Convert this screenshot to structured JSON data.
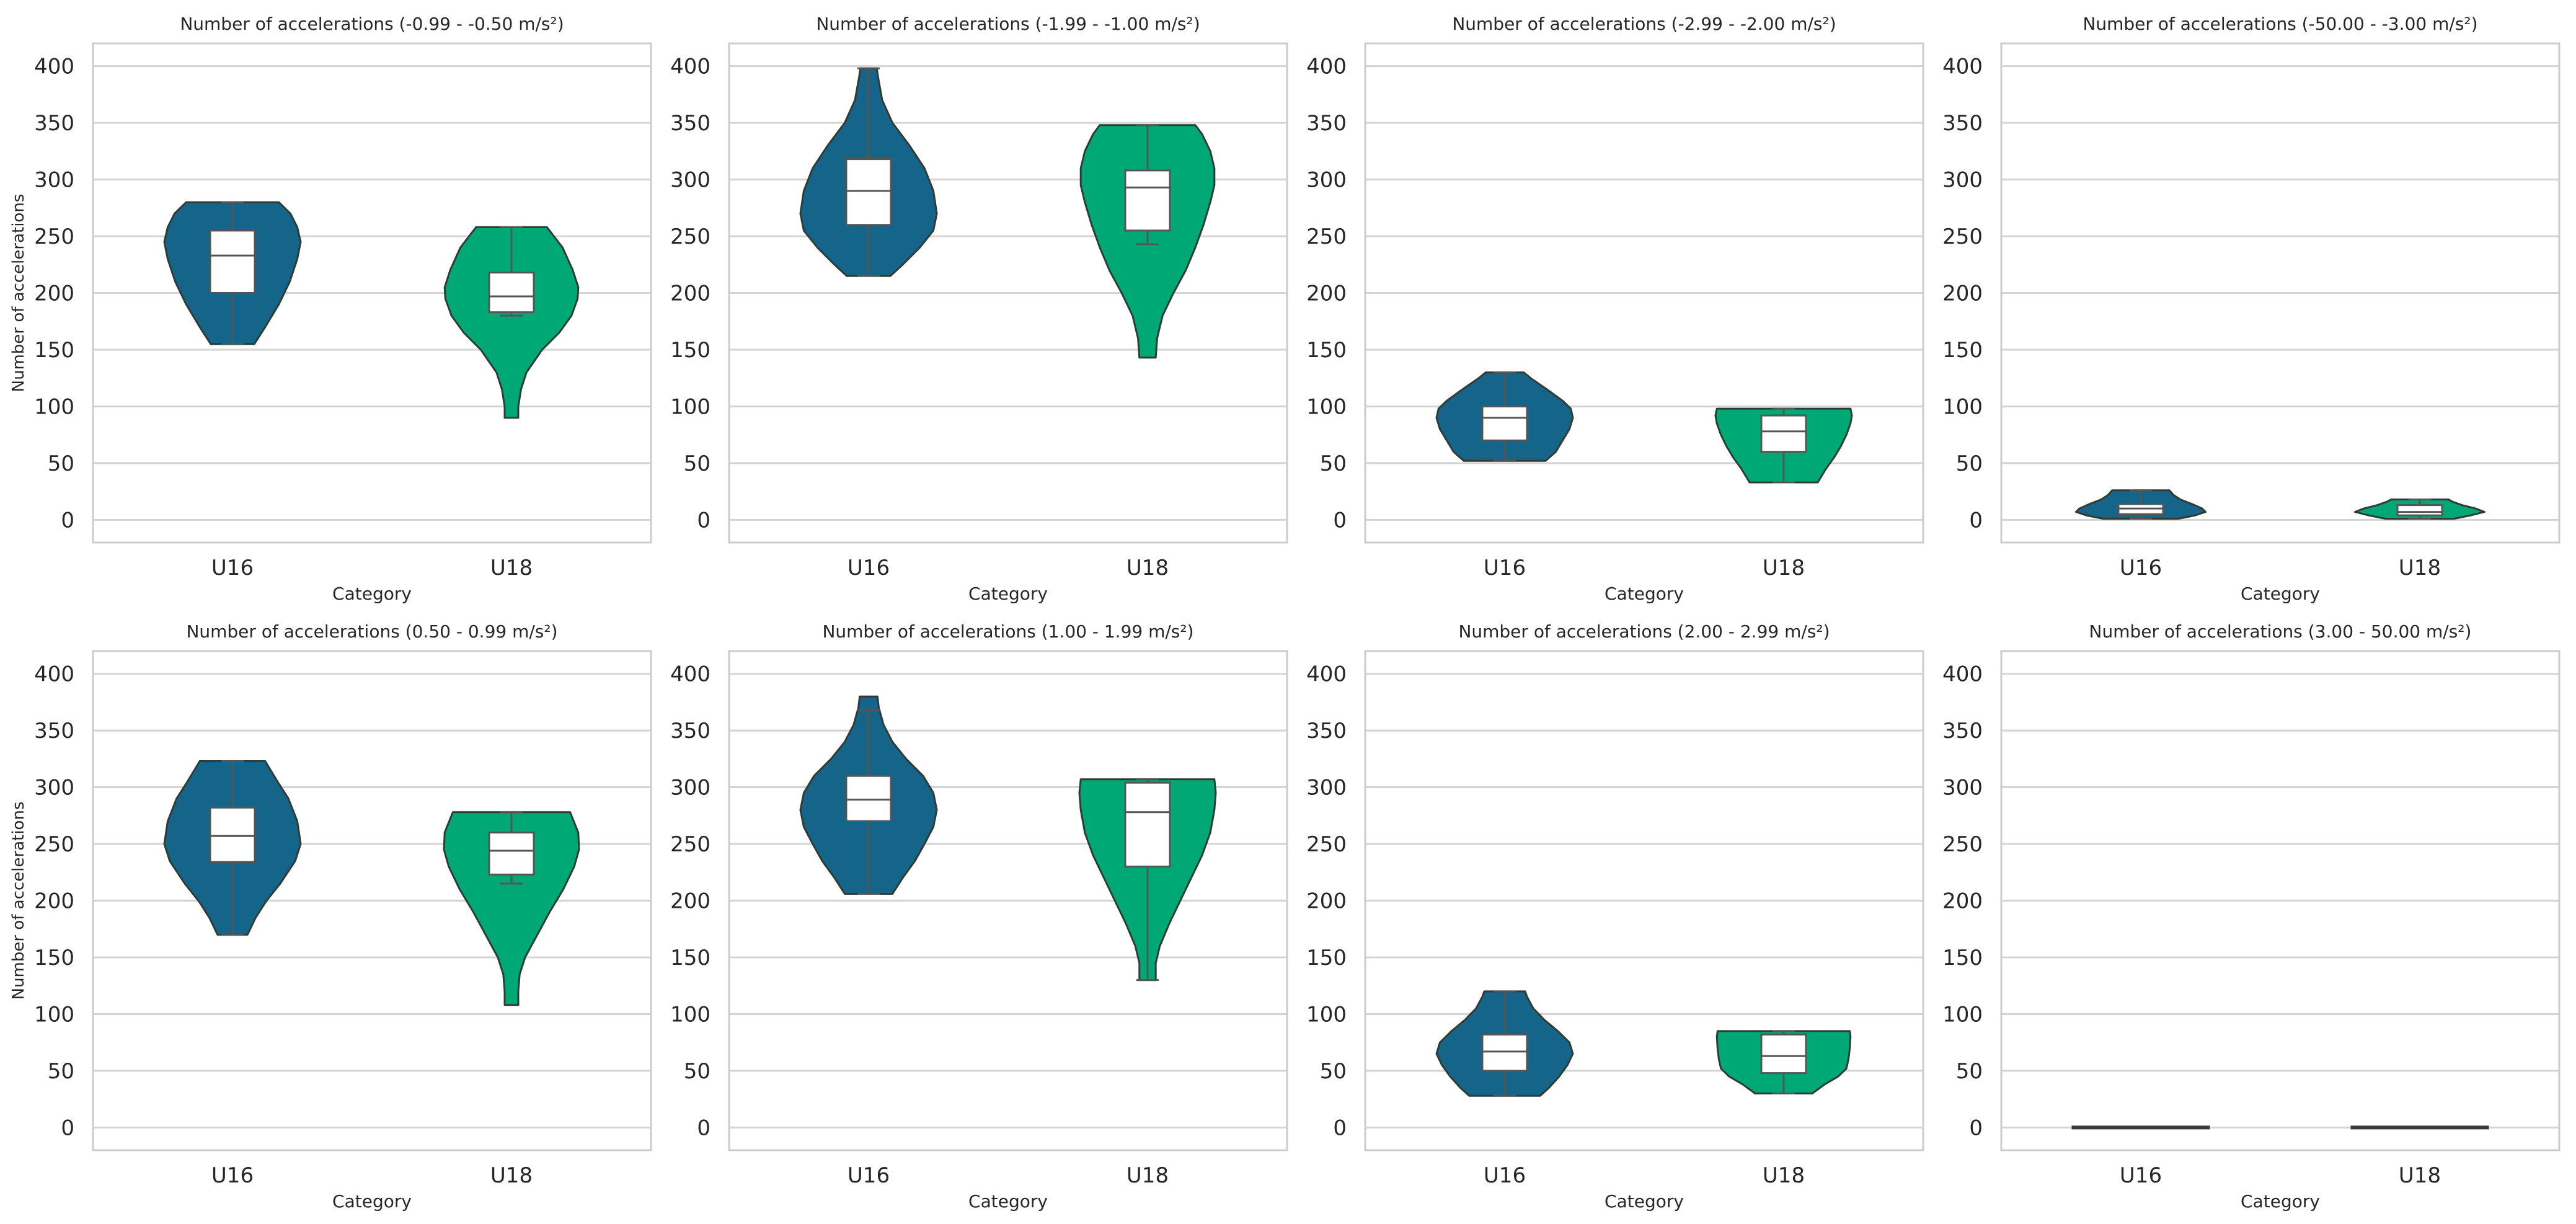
{
  "chart_data": {
    "type": "violin",
    "ylabel": "Number of accelerations",
    "xlabel": "Category",
    "categories": [
      "U16",
      "U18"
    ],
    "ylim": [
      -20,
      420
    ],
    "yticks": [
      0,
      50,
      100,
      150,
      200,
      250,
      300,
      350,
      400
    ],
    "grid": "horizontal",
    "colors": {
      "U16": "#15658a",
      "U18": "#00a875"
    },
    "panels": [
      {
        "title": "Number of accelerations (-0.99 - -0.50 m/s²)",
        "show_ylabel": true,
        "violins": [
          {
            "category": "U16",
            "min": 155,
            "q1": 200,
            "median": 233,
            "q3": 255,
            "max": 280,
            "whisker_low": 155,
            "whisker_high": 280,
            "profile": [
              [
                155,
                0.32
              ],
              [
                170,
                0.48
              ],
              [
                190,
                0.68
              ],
              [
                210,
                0.84
              ],
              [
                230,
                0.95
              ],
              [
                245,
                1.0
              ],
              [
                258,
                0.95
              ],
              [
                270,
                0.85
              ],
              [
                280,
                0.68
              ]
            ]
          },
          {
            "category": "U18",
            "min": 90,
            "q1": 183,
            "median": 197,
            "q3": 218,
            "max": 258,
            "whisker_low": 180,
            "whisker_high": 258,
            "profile": [
              [
                90,
                0.1
              ],
              [
                100,
                0.1
              ],
              [
                115,
                0.14
              ],
              [
                130,
                0.22
              ],
              [
                150,
                0.45
              ],
              [
                165,
                0.7
              ],
              [
                180,
                0.88
              ],
              [
                195,
                0.97
              ],
              [
                205,
                0.98
              ],
              [
                220,
                0.9
              ],
              [
                240,
                0.75
              ],
              [
                258,
                0.52
              ]
            ]
          }
        ]
      },
      {
        "title": "Number of accelerations (-1.99 - -1.00 m/s²)",
        "show_ylabel": false,
        "violins": [
          {
            "category": "U16",
            "min": 215,
            "q1": 260,
            "median": 290,
            "q3": 318,
            "max": 398,
            "whisker_low": 215,
            "whisker_high": 398,
            "profile": [
              [
                215,
                0.32
              ],
              [
                225,
                0.5
              ],
              [
                240,
                0.75
              ],
              [
                255,
                0.95
              ],
              [
                270,
                1.0
              ],
              [
                290,
                0.95
              ],
              [
                310,
                0.82
              ],
              [
                330,
                0.6
              ],
              [
                350,
                0.35
              ],
              [
                370,
                0.2
              ],
              [
                390,
                0.14
              ],
              [
                398,
                0.12
              ]
            ]
          },
          {
            "category": "U18",
            "min": 143,
            "q1": 255,
            "median": 293,
            "q3": 308,
            "max": 348,
            "whisker_low": 243,
            "whisker_high": 348,
            "profile": [
              [
                143,
                0.12
              ],
              [
                160,
                0.14
              ],
              [
                180,
                0.22
              ],
              [
                200,
                0.38
              ],
              [
                220,
                0.56
              ],
              [
                240,
                0.7
              ],
              [
                260,
                0.82
              ],
              [
                280,
                0.92
              ],
              [
                295,
                0.98
              ],
              [
                310,
                0.98
              ],
              [
                325,
                0.92
              ],
              [
                340,
                0.8
              ],
              [
                348,
                0.7
              ]
            ]
          }
        ]
      },
      {
        "title": "Number of accelerations (-2.99 - -2.00 m/s²)",
        "show_ylabel": false,
        "violins": [
          {
            "category": "U16",
            "min": 52,
            "q1": 70,
            "median": 90,
            "q3": 100,
            "max": 130,
            "whisker_low": 52,
            "whisker_high": 130,
            "profile": [
              [
                52,
                0.6
              ],
              [
                60,
                0.75
              ],
              [
                70,
                0.85
              ],
              [
                80,
                0.95
              ],
              [
                90,
                1.0
              ],
              [
                98,
                0.97
              ],
              [
                105,
                0.85
              ],
              [
                115,
                0.62
              ],
              [
                125,
                0.38
              ],
              [
                130,
                0.28
              ]
            ]
          },
          {
            "category": "U18",
            "min": 33,
            "q1": 60,
            "median": 78,
            "q3": 92,
            "max": 98,
            "whisker_low": 33,
            "whisker_high": 98,
            "profile": [
              [
                33,
                0.5
              ],
              [
                45,
                0.62
              ],
              [
                55,
                0.74
              ],
              [
                65,
                0.84
              ],
              [
                75,
                0.92
              ],
              [
                85,
                0.98
              ],
              [
                92,
                1.0
              ],
              [
                98,
                0.98
              ]
            ]
          }
        ]
      },
      {
        "title": "Number of accelerations (-50.00 - -3.00 m/s²)",
        "show_ylabel": false,
        "violins": [
          {
            "category": "U16",
            "min": 1,
            "q1": 5,
            "median": 10,
            "q3": 14,
            "max": 26,
            "whisker_low": 1,
            "whisker_high": 26,
            "profile": [
              [
                1,
                0.55
              ],
              [
                4,
                0.8
              ],
              [
                7,
                0.95
              ],
              [
                10,
                0.9
              ],
              [
                14,
                0.75
              ],
              [
                18,
                0.58
              ],
              [
                22,
                0.48
              ],
              [
                26,
                0.42
              ]
            ]
          },
          {
            "category": "U18",
            "min": 1,
            "q1": 4,
            "median": 7,
            "q3": 13,
            "max": 18,
            "whisker_low": 1,
            "whisker_high": 18,
            "profile": [
              [
                1,
                0.5
              ],
              [
                4,
                0.75
              ],
              [
                7,
                0.95
              ],
              [
                10,
                0.82
              ],
              [
                13,
                0.62
              ],
              [
                16,
                0.48
              ],
              [
                18,
                0.42
              ]
            ]
          }
        ]
      },
      {
        "title": "Number of accelerations (0.50 - 0.99 m/s²)",
        "show_ylabel": true,
        "violins": [
          {
            "category": "U16",
            "min": 170,
            "q1": 234,
            "median": 257,
            "q3": 282,
            "max": 323,
            "whisker_low": 170,
            "whisker_high": 323,
            "profile": [
              [
                170,
                0.22
              ],
              [
                185,
                0.34
              ],
              [
                200,
                0.5
              ],
              [
                215,
                0.7
              ],
              [
                235,
                0.92
              ],
              [
                250,
                1.0
              ],
              [
                270,
                0.95
              ],
              [
                290,
                0.82
              ],
              [
                305,
                0.66
              ],
              [
                315,
                0.56
              ],
              [
                323,
                0.48
              ]
            ]
          },
          {
            "category": "U18",
            "min": 108,
            "q1": 223,
            "median": 244,
            "q3": 260,
            "max": 278,
            "whisker_low": 215,
            "whisker_high": 278,
            "profile": [
              [
                108,
                0.1
              ],
              [
                120,
                0.1
              ],
              [
                135,
                0.12
              ],
              [
                150,
                0.2
              ],
              [
                170,
                0.38
              ],
              [
                190,
                0.56
              ],
              [
                210,
                0.76
              ],
              [
                230,
                0.92
              ],
              [
                245,
                0.99
              ],
              [
                260,
                0.98
              ],
              [
                278,
                0.86
              ]
            ]
          }
        ]
      },
      {
        "title": "Number of accelerations (1.00 - 1.99 m/s²)",
        "show_ylabel": false,
        "violins": [
          {
            "category": "U16",
            "min": 206,
            "q1": 270,
            "median": 289,
            "q3": 310,
            "max": 380,
            "whisker_low": 206,
            "whisker_high": 368,
            "profile": [
              [
                206,
                0.35
              ],
              [
                220,
                0.5
              ],
              [
                235,
                0.68
              ],
              [
                250,
                0.82
              ],
              [
                265,
                0.95
              ],
              [
                280,
                1.0
              ],
              [
                295,
                0.95
              ],
              [
                310,
                0.8
              ],
              [
                325,
                0.55
              ],
              [
                340,
                0.35
              ],
              [
                355,
                0.22
              ],
              [
                370,
                0.15
              ],
              [
                380,
                0.13
              ]
            ]
          },
          {
            "category": "U18",
            "min": 130,
            "q1": 230,
            "median": 278,
            "q3": 304,
            "max": 307,
            "whisker_low": 130,
            "whisker_high": 307,
            "profile": [
              [
                130,
                0.12
              ],
              [
                145,
                0.12
              ],
              [
                160,
                0.18
              ],
              [
                180,
                0.32
              ],
              [
                200,
                0.48
              ],
              [
                220,
                0.64
              ],
              [
                240,
                0.8
              ],
              [
                260,
                0.92
              ],
              [
                280,
                0.98
              ],
              [
                295,
                1.0
              ],
              [
                307,
                0.98
              ]
            ]
          }
        ]
      },
      {
        "title": "Number of accelerations (2.00 - 2.99 m/s²)",
        "show_ylabel": false,
        "violins": [
          {
            "category": "U16",
            "min": 28,
            "q1": 50,
            "median": 67,
            "q3": 82,
            "max": 120,
            "whisker_low": 28,
            "whisker_high": 120,
            "profile": [
              [
                28,
                0.52
              ],
              [
                35,
                0.65
              ],
              [
                45,
                0.8
              ],
              [
                55,
                0.92
              ],
              [
                65,
                1.0
              ],
              [
                75,
                0.95
              ],
              [
                85,
                0.78
              ],
              [
                95,
                0.58
              ],
              [
                105,
                0.42
              ],
              [
                115,
                0.33
              ],
              [
                120,
                0.3
              ]
            ]
          },
          {
            "category": "U18",
            "min": 30,
            "q1": 48,
            "median": 63,
            "q3": 82,
            "max": 85,
            "whisker_low": 30,
            "whisker_high": 85,
            "profile": [
              [
                30,
                0.42
              ],
              [
                38,
                0.6
              ],
              [
                45,
                0.8
              ],
              [
                52,
                0.92
              ],
              [
                60,
                0.95
              ],
              [
                70,
                0.97
              ],
              [
                80,
                0.98
              ],
              [
                85,
                0.97
              ]
            ]
          }
        ]
      },
      {
        "title": "Number of accelerations (3.00 - 50.00 m/s²)",
        "show_ylabel": false,
        "violins": [
          {
            "category": "U16",
            "min": 0,
            "q1": 0,
            "median": 0,
            "q3": 0,
            "max": 1,
            "whisker_low": 0,
            "whisker_high": 1,
            "profile": [
              [
                0,
                1.0
              ],
              [
                1,
                0.98
              ]
            ]
          },
          {
            "category": "U18",
            "min": 0,
            "q1": 0,
            "median": 0,
            "q3": 0,
            "max": 0,
            "whisker_low": 0,
            "whisker_high": 0,
            "profile": [
              [
                0,
                1.0
              ]
            ]
          }
        ]
      }
    ]
  }
}
